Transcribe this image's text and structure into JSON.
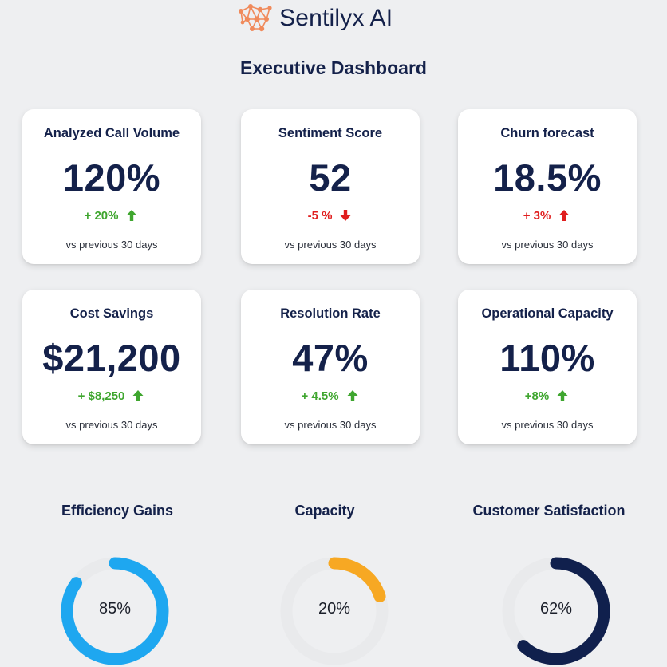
{
  "header": {
    "brand_name": "Sentilyx AI",
    "logo_icon": "network-nodes-icon",
    "logo_color": "#f08a5b"
  },
  "page_title": "Executive Dashboard",
  "colors": {
    "positive": "#3fa62f",
    "negative": "#e01e1e",
    "navy": "#14214a",
    "track": "#e9eaec"
  },
  "cards": [
    {
      "title": "Analyzed Call Volume",
      "value": "120%",
      "change": "+ 20%",
      "trend": "up",
      "note": "vs previous 30 days"
    },
    {
      "title": "Sentiment Score",
      "value": "52",
      "change": "-5 %",
      "trend": "down",
      "note": "vs previous 30 days"
    },
    {
      "title": "Churn forecast",
      "value": "18.5%",
      "change": "+ 3%",
      "trend": "up-bad",
      "note": "vs previous 30 days"
    },
    {
      "title": "Cost Savings",
      "value": "$21,200",
      "change": "+ $8,250",
      "trend": "up",
      "note": "vs previous 30 days"
    },
    {
      "title": "Resolution Rate",
      "value": "47%",
      "change": "+ 4.5%",
      "trend": "up",
      "note": "vs previous 30 days"
    },
    {
      "title": "Operational Capacity",
      "value": "110%",
      "change": "+8%",
      "trend": "up",
      "note": "vs previous 30 days"
    }
  ],
  "gauges": [
    {
      "title": "Efficiency Gains",
      "label": "85%",
      "value": 0.85,
      "color": "#1ea7f0"
    },
    {
      "title": "Capacity",
      "label": "20%",
      "value": 0.2,
      "color": "#f7a823"
    },
    {
      "title": "Customer Satisfaction",
      "label": "62%",
      "value": 0.62,
      "color": "#10204d"
    }
  ]
}
